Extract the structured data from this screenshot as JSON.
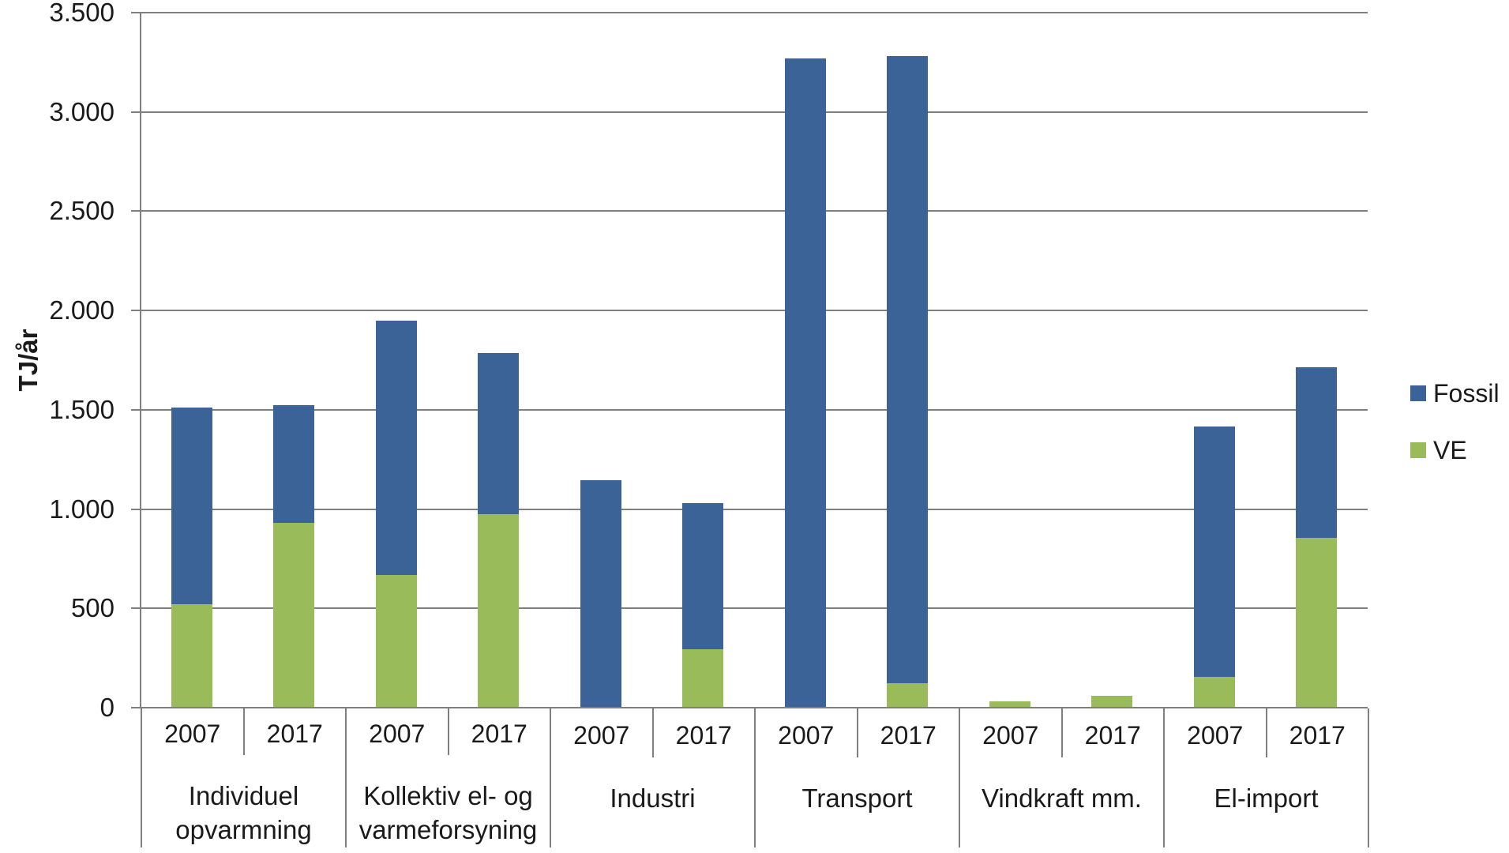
{
  "chart_data": {
    "type": "bar",
    "stacked": true,
    "title": "",
    "xlabel": "",
    "ylabel": "TJ/år",
    "ylim": [
      0,
      3500
    ],
    "ytick_step": 500,
    "ytick_labels": [
      "0",
      "500",
      "1.000",
      "1.500",
      "2.000",
      "2.500",
      "3.000",
      "3.500"
    ],
    "grid": true,
    "legend_position": "right",
    "groups": [
      {
        "label": "Individuel opvarmning",
        "label_lines": [
          "Individuel",
          "opvarmning"
        ],
        "years": [
          "2007",
          "2017"
        ]
      },
      {
        "label": "Kollektiv el- og varmeforsyning",
        "label_lines": [
          "Kollektiv el- og",
          "varmeforsyning"
        ],
        "years": [
          "2007",
          "2017"
        ]
      },
      {
        "label": "Industri",
        "label_lines": [
          "Industri"
        ],
        "years": [
          "2007",
          "2017"
        ]
      },
      {
        "label": "Transport",
        "label_lines": [
          "Transport"
        ],
        "years": [
          "2007",
          "2017"
        ]
      },
      {
        "label": "Vindkraft mm.",
        "label_lines": [
          "Vindkraft mm."
        ],
        "years": [
          "2007",
          "2017"
        ]
      },
      {
        "label": "El-import",
        "label_lines": [
          "El-import"
        ],
        "years": [
          "2007",
          "2017"
        ]
      }
    ],
    "x_years": [
      "2007",
      "2017",
      "2007",
      "2017",
      "2007",
      "2017",
      "2007",
      "2017",
      "2007",
      "2017",
      "2007",
      "2017"
    ],
    "series": [
      {
        "name": "Fossil",
        "color": "#3B6397",
        "values": [
          990,
          595,
          1280,
          810,
          1145,
          735,
          3270,
          3155,
          0,
          0,
          1260,
          860
        ]
      },
      {
        "name": "VE",
        "color": "#9ABB59",
        "values": [
          520,
          930,
          670,
          975,
          0,
          295,
          0,
          125,
          30,
          60,
          155,
          855
        ]
      }
    ],
    "colors": {
      "fossil": "#3B6397",
      "ve": "#9ABB59",
      "gridline": "#7f7f7f",
      "text": "#1a1a1a"
    }
  }
}
